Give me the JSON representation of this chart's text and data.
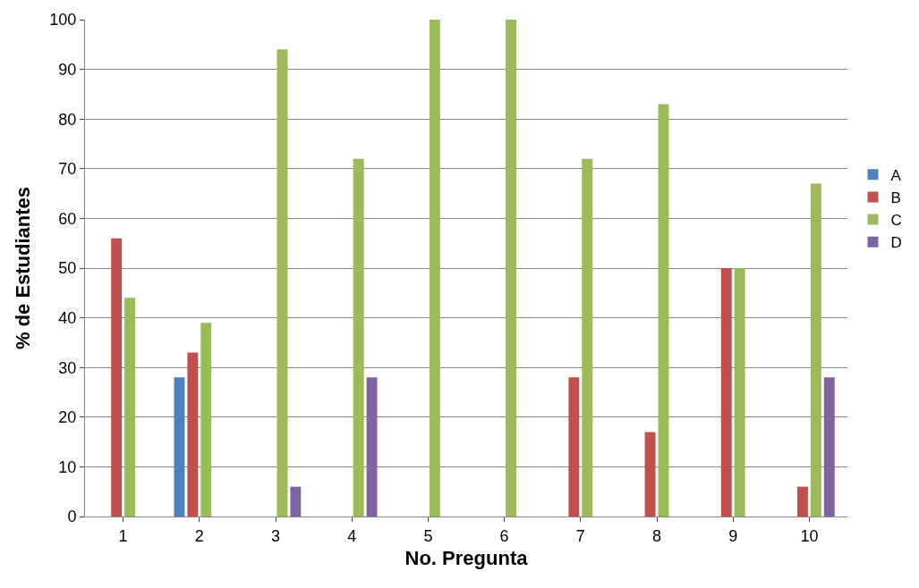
{
  "chart_data": {
    "type": "bar",
    "xlabel": "No. Pregunta",
    "ylabel": "% de Estudiantes",
    "categories": [
      "1",
      "2",
      "3",
      "4",
      "5",
      "6",
      "7",
      "8",
      "9",
      "10"
    ],
    "series": [
      {
        "name": "A",
        "color": "#4f81bd",
        "values": [
          0,
          28,
          0,
          0,
          0,
          0,
          0,
          0,
          0,
          0
        ]
      },
      {
        "name": "B",
        "color": "#c0504d",
        "values": [
          56,
          33,
          0,
          0,
          0,
          0,
          28,
          17,
          50,
          6
        ]
      },
      {
        "name": "C",
        "color": "#9bbb59",
        "values": [
          44,
          39,
          94,
          72,
          100,
          100,
          72,
          83,
          50,
          67
        ]
      },
      {
        "name": "D",
        "color": "#8064a2",
        "values": [
          0,
          0,
          6,
          28,
          0,
          0,
          0,
          0,
          0,
          28
        ]
      }
    ],
    "ylim": [
      0,
      100
    ],
    "yticks": [
      0,
      10,
      20,
      30,
      40,
      50,
      60,
      70,
      80,
      90,
      100
    ],
    "grid": "y",
    "legend": "right"
  }
}
